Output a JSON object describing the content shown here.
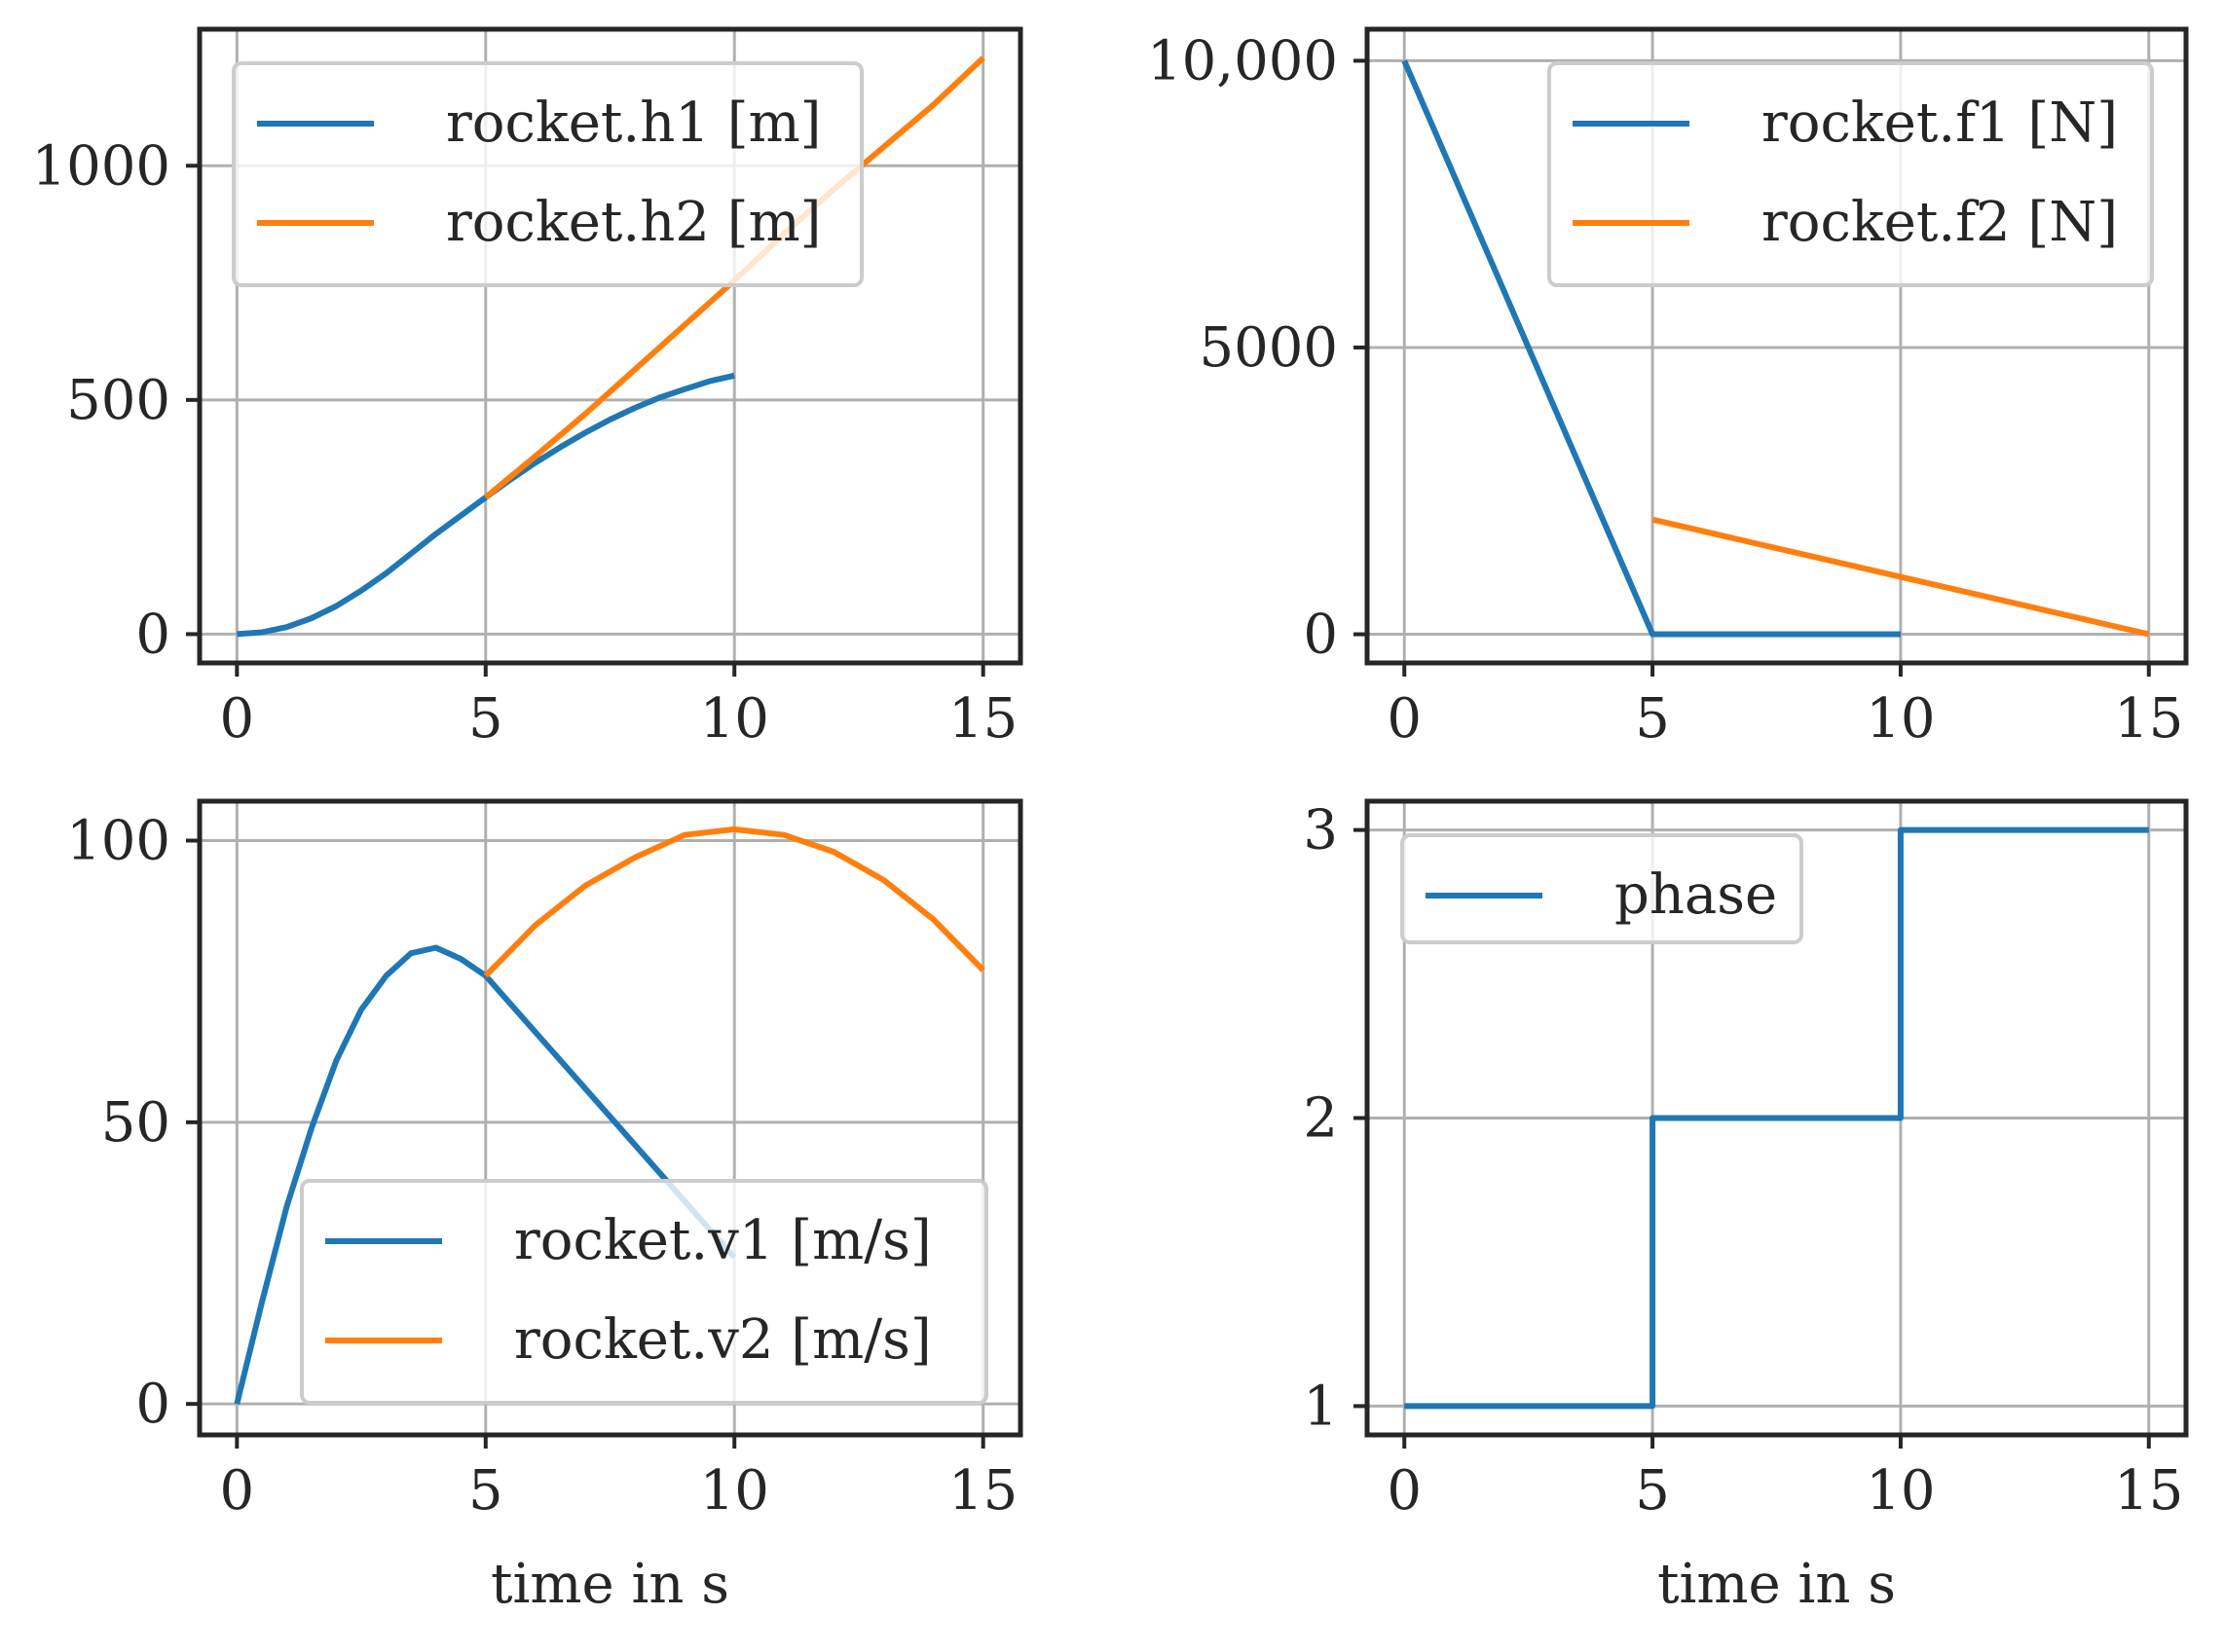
{
  "colors": {
    "series1": "#1f77b4",
    "series2": "#ff7f0e",
    "frame": "#262626",
    "grid": "#b0b0b0"
  },
  "chart_data": [
    {
      "type": "line",
      "title": "",
      "xlabel": "",
      "ylabel": "",
      "xlim": [
        -0.75,
        15.75
      ],
      "ylim": [
        -61.5,
        1291.5
      ],
      "xticks": [
        0,
        5,
        10,
        15
      ],
      "xtick_labels": [
        "0",
        "5",
        "10",
        "15"
      ],
      "yticks": [
        0,
        500,
        1000
      ],
      "ytick_labels": [
        "0",
        "500",
        "1000"
      ],
      "grid": true,
      "legend_position": "upper-left",
      "series": [
        {
          "name": "rocket.h1 [m]",
          "color": "#1f77b4",
          "x": [
            0,
            0.5,
            1,
            1.5,
            2,
            2.5,
            3,
            3.5,
            4,
            4.5,
            5,
            5.5,
            6,
            6.5,
            7,
            7.5,
            8,
            8.5,
            9,
            9.5,
            10
          ],
          "y": [
            0,
            4,
            15,
            34,
            60,
            93,
            130,
            172,
            214,
            253,
            292,
            330,
            366,
            399,
            430,
            458,
            483,
            505,
            523,
            540,
            552
          ]
        },
        {
          "name": "rocket.h2 [m]",
          "color": "#ff7f0e",
          "x": [
            5,
            6,
            7,
            8,
            9,
            10,
            11,
            12,
            13,
            14,
            15
          ],
          "y": [
            292,
            380,
            470,
            565,
            660,
            755,
            855,
            950,
            1040,
            1130,
            1230
          ]
        }
      ]
    },
    {
      "type": "line",
      "title": "",
      "xlabel": "",
      "ylabel": "",
      "xlim": [
        -0.75,
        15.75
      ],
      "ylim": [
        -500,
        10550
      ],
      "xticks": [
        0,
        5,
        10,
        15
      ],
      "xtick_labels": [
        "0",
        "5",
        "10",
        "15"
      ],
      "yticks": [
        0,
        5000,
        10000
      ],
      "ytick_labels": [
        "0",
        "5000",
        "10,000"
      ],
      "grid": true,
      "legend_position": "upper-right",
      "series": [
        {
          "name": "rocket.f1 [N]",
          "color": "#1f77b4",
          "x": [
            0,
            5,
            10
          ],
          "y": [
            10000,
            0,
            0
          ]
        },
        {
          "name": "rocket.f2 [N]",
          "color": "#ff7f0e",
          "x": [
            5,
            15
          ],
          "y": [
            2000,
            0
          ]
        }
      ]
    },
    {
      "type": "line",
      "title": "",
      "xlabel": "time in s",
      "ylabel": "",
      "xlim": [
        -0.75,
        15.75
      ],
      "ylim": [
        -5.5,
        107
      ],
      "xticks": [
        0,
        5,
        10,
        15
      ],
      "xtick_labels": [
        "0",
        "5",
        "10",
        "15"
      ],
      "yticks": [
        0,
        50,
        100
      ],
      "ytick_labels": [
        "0",
        "50",
        "100"
      ],
      "grid": true,
      "legend_position": "lower-right",
      "series": [
        {
          "name": "rocket.v1 [m/s]",
          "color": "#1f77b4",
          "x": [
            0,
            0.5,
            1,
            1.5,
            2,
            2.5,
            3,
            3.5,
            4,
            4.5,
            5,
            6,
            7,
            8,
            9,
            10
          ],
          "y": [
            0,
            18,
            35,
            49,
            61,
            70,
            76,
            80,
            81,
            79,
            76,
            66,
            56,
            46,
            36,
            26
          ]
        },
        {
          "name": "rocket.v2 [m/s]",
          "color": "#ff7f0e",
          "x": [
            5,
            6,
            7,
            8,
            9,
            10,
            11,
            12,
            13,
            14,
            15
          ],
          "y": [
            76,
            85,
            92,
            97,
            101,
            102,
            101,
            98,
            93,
            86,
            77
          ]
        }
      ]
    },
    {
      "type": "line",
      "title": "",
      "xlabel": "time in s",
      "ylabel": "",
      "xlim": [
        -0.75,
        15.75
      ],
      "ylim": [
        0.9,
        3.1
      ],
      "xticks": [
        0,
        5,
        10,
        15
      ],
      "xtick_labels": [
        "0",
        "5",
        "10",
        "15"
      ],
      "yticks": [
        1,
        2,
        3
      ],
      "ytick_labels": [
        "1",
        "2",
        "3"
      ],
      "grid": true,
      "legend_position": "upper-left",
      "series": [
        {
          "name": "phase",
          "color": "#1f77b4",
          "x": [
            0,
            5,
            5,
            10,
            10,
            15
          ],
          "y": [
            1,
            1,
            2,
            2,
            3,
            3
          ]
        }
      ]
    }
  ]
}
